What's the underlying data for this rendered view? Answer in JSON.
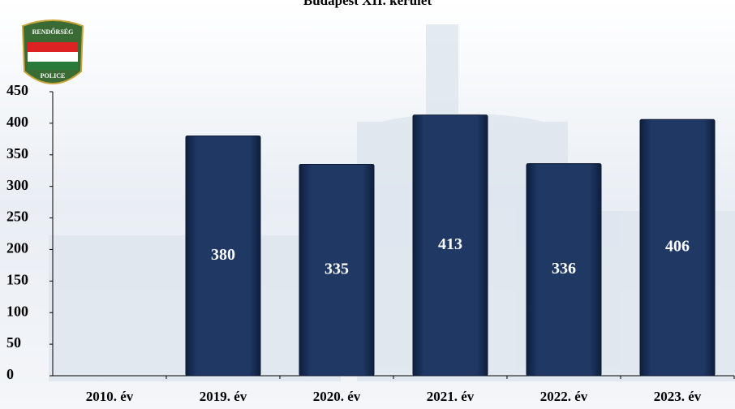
{
  "chart_data": {
    "type": "bar",
    "title": "Budapest XII. kerület",
    "logo": {
      "top": "RENDŐRSÉG",
      "bottom": "POLICE"
    },
    "categories": [
      "2010. év",
      "2019. év",
      "2020. év",
      "2021. év",
      "2022. év",
      "2023. év"
    ],
    "values": [
      null,
      380,
      335,
      413,
      336,
      406
    ],
    "color": "#1f3864",
    "ylim": [
      0,
      450
    ],
    "yticks": [
      0,
      50,
      100,
      150,
      200,
      250,
      300,
      350,
      400,
      450
    ],
    "grid": false,
    "data_labels": true
  }
}
